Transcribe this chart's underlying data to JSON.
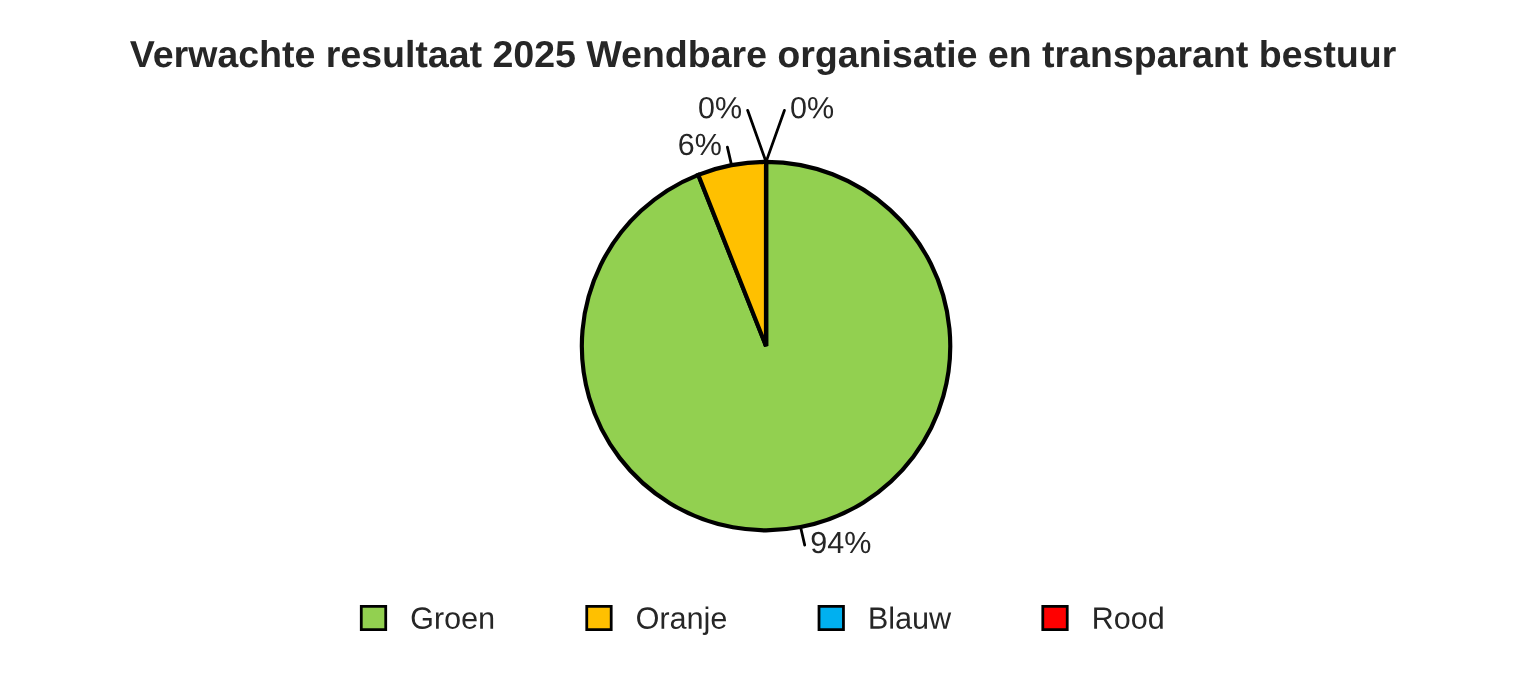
{
  "chart_data": {
    "type": "pie",
    "title": "Verwachte resultaat 2025 Wendbare organisatie en transparant bestuur",
    "categories": [
      "Groen",
      "Oranje",
      "Blauw",
      "Rood"
    ],
    "values": [
      94,
      6,
      0,
      0
    ],
    "value_labels": [
      "94%",
      "6%",
      "0%",
      "0%"
    ],
    "colors": [
      "#92d050",
      "#ffc000",
      "#00b0f0",
      "#ff0000"
    ],
    "legend": "bottom"
  }
}
